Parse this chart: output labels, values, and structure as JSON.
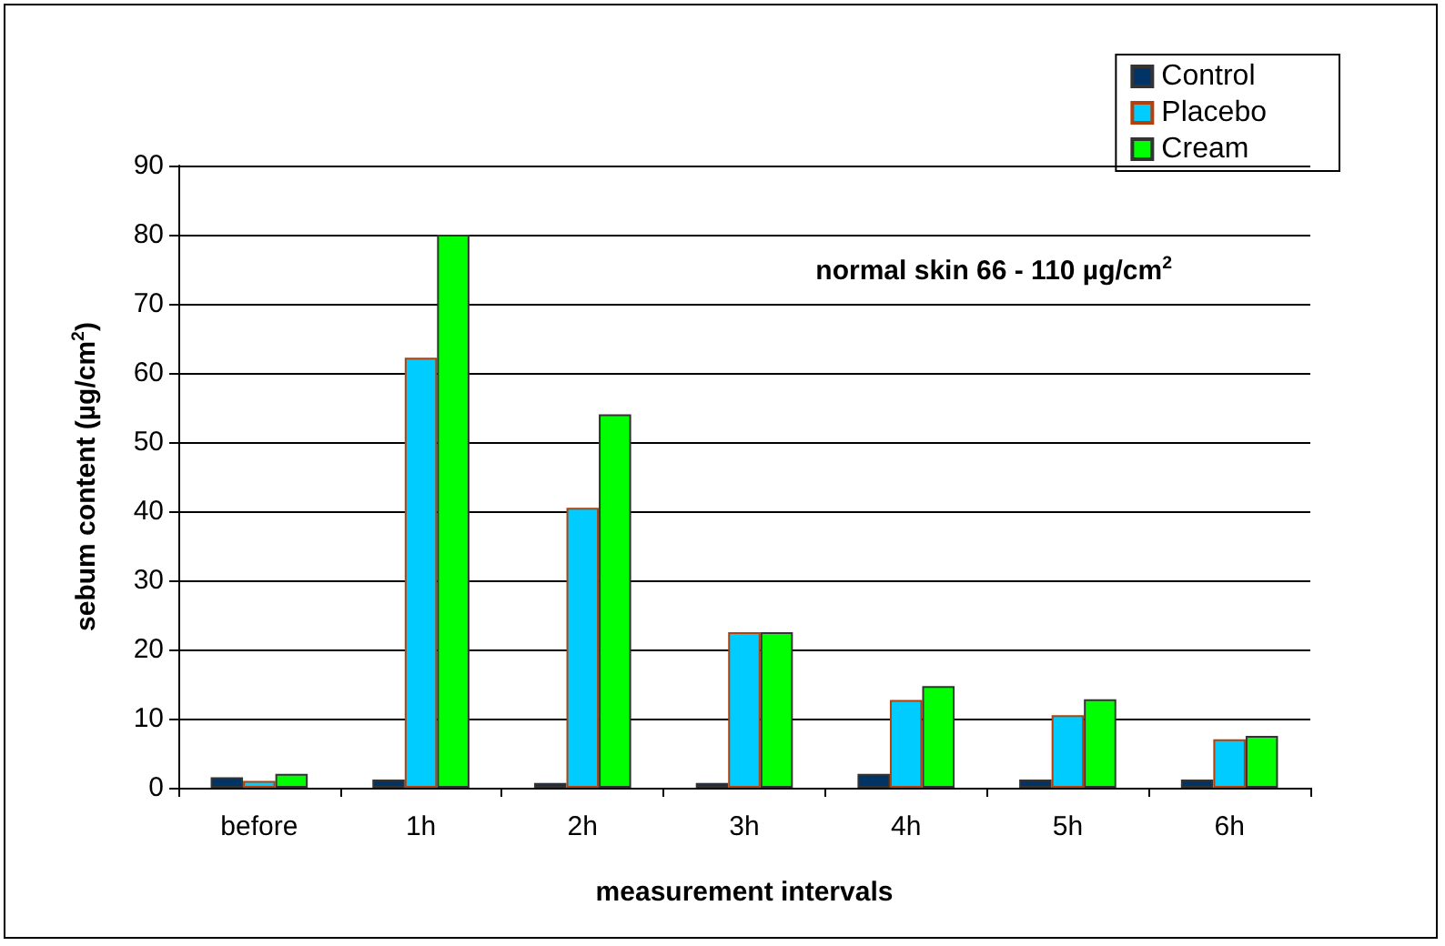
{
  "chart_data": {
    "type": "bar",
    "xlabel": "measurement intervals",
    "ylabel": "sebum content (µg/cm$^{2}$)",
    "categories": [
      "before",
      "1h",
      "2h",
      "3h",
      "4h",
      "5h",
      "6h"
    ],
    "series": [
      {
        "name": "Control",
        "color": "#003366",
        "values": [
          1.5,
          1.2,
          0.7,
          0.7,
          2,
          1.2,
          1.2
        ]
      },
      {
        "name": "Placebo",
        "color": "#00ccff",
        "values": [
          1,
          62.2,
          40.5,
          22.5,
          12.7,
          10.5,
          7
        ]
      },
      {
        "name": "Cream",
        "color": "#00ff00",
        "values": [
          2,
          80,
          54,
          22.5,
          14.7,
          12.8,
          7.5
        ]
      }
    ],
    "ylim": [
      0,
      90
    ],
    "yticks": [
      0,
      10,
      20,
      30,
      40,
      50,
      60,
      70,
      80,
      90
    ],
    "grid": "y",
    "legend": "top right",
    "annotations": [
      "normal skin 66 - 110 µg/cm$^{2}$"
    ]
  }
}
